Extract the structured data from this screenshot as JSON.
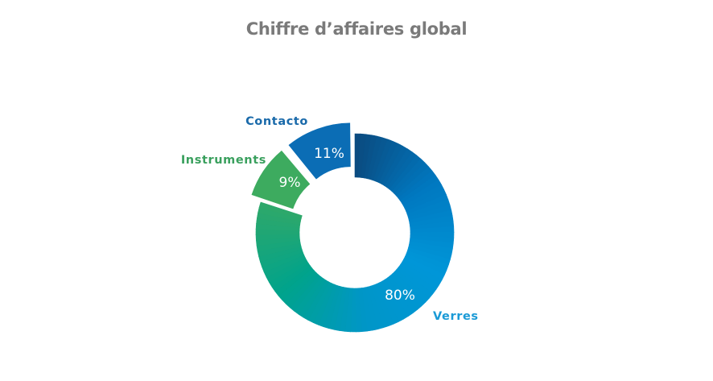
{
  "chart_data": {
    "type": "pie",
    "variant": "donut",
    "title": "Chiffre d’affaires global",
    "slices": [
      {
        "label": "Verres",
        "value": 80,
        "value_label": "80%",
        "color": "gradient",
        "label_color": "#1a9ad6",
        "exploded": false
      },
      {
        "label": "Instruments",
        "value": 9,
        "value_label": "9%",
        "color": "#3dab5f",
        "label_color": "#3aa05e",
        "exploded": true
      },
      {
        "label": "Contacto",
        "value": 11,
        "value_label": "11%",
        "color": "#0b6db5",
        "label_color": "#1a6aaa",
        "exploded": true
      }
    ],
    "verres_gradient": [
      "#0b4a7e",
      "#0078c0",
      "#0096d8",
      "#0096c8",
      "#00a38c",
      "#2ea86a"
    ]
  }
}
